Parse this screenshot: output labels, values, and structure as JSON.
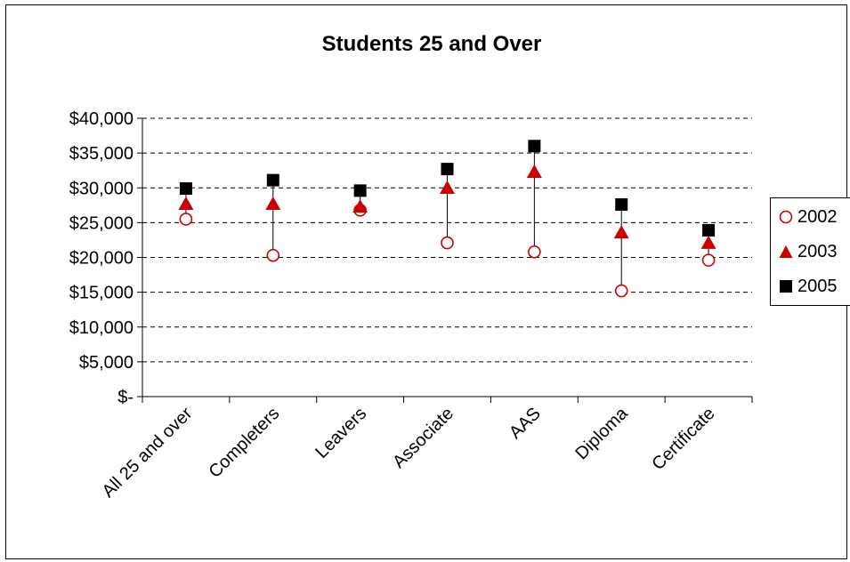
{
  "chart_data": {
    "type": "scatter",
    "title": "Students 25 and Over",
    "categories": [
      "All 25 and over",
      "Completers",
      "Leavers",
      "Associate",
      "AAS",
      "Diploma",
      "Certificate"
    ],
    "series": [
      {
        "name": "2002",
        "marker": "open-circle",
        "color": "#cc0000",
        "values": [
          25500,
          20300,
          26800,
          22100,
          20800,
          15200,
          19600
        ]
      },
      {
        "name": "2003",
        "marker": "triangle",
        "color": "#cc0000",
        "values": [
          27600,
          27600,
          27200,
          29900,
          32200,
          23500,
          22000
        ]
      },
      {
        "name": "2005",
        "marker": "square",
        "color": "#000000",
        "values": [
          29900,
          31100,
          29600,
          32700,
          36000,
          27600,
          23900
        ]
      }
    ],
    "ylim": [
      0,
      40000
    ],
    "yticks": [
      {
        "value": 40000,
        "label": "$40,000"
      },
      {
        "value": 35000,
        "label": "$35,000"
      },
      {
        "value": 30000,
        "label": "$30,000"
      },
      {
        "value": 25000,
        "label": "$25,000"
      },
      {
        "value": 20000,
        "label": "$20,000"
      },
      {
        "value": 15000,
        "label": "$15,000"
      },
      {
        "value": 10000,
        "label": "$10,000"
      },
      {
        "value": 5000,
        "label": "$5,000"
      },
      {
        "value": 0,
        "label": "$-"
      }
    ],
    "grid": "horizontal-dashed",
    "high_low_lines": true,
    "legend_position": "right"
  }
}
